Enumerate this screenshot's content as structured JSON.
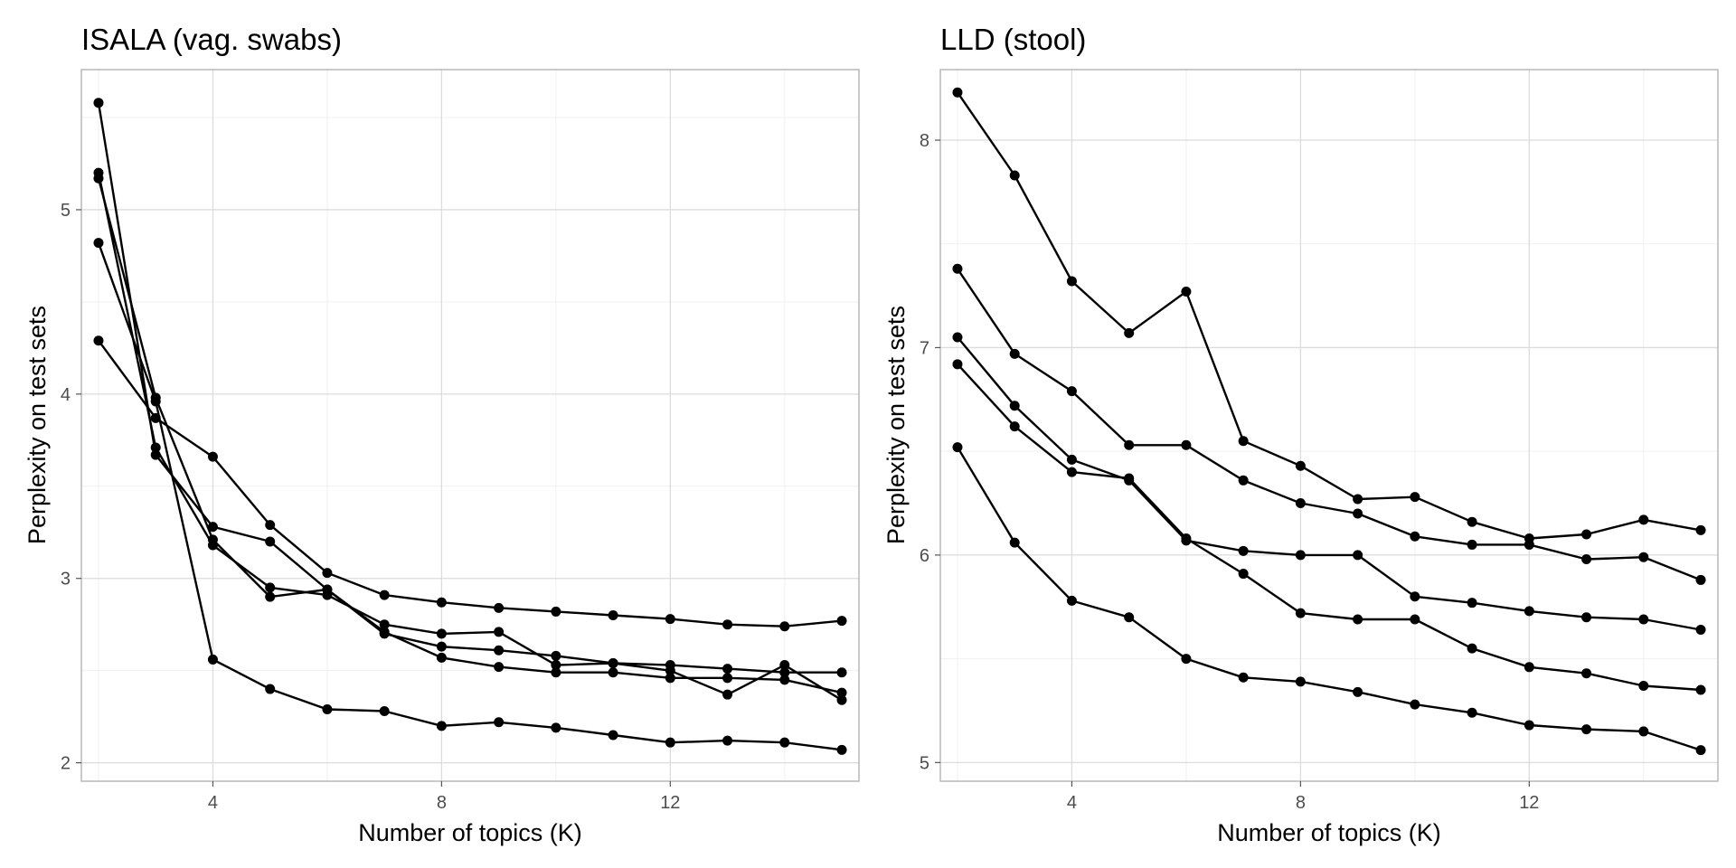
{
  "chart_data": [
    {
      "type": "line",
      "title": "ISALA (vag. swabs)",
      "xlabel": "Number of topics (K)",
      "ylabel": "Perplexity on test sets",
      "xlim": [
        1.7,
        15.3
      ],
      "ylim": [
        1.9,
        5.76
      ],
      "xticks": [
        4,
        8,
        12
      ],
      "yticks": [
        2,
        3,
        4,
        5
      ],
      "grid": true,
      "x": [
        2,
        3,
        4,
        5,
        6,
        7,
        8,
        9,
        10,
        11,
        12,
        13,
        14,
        15
      ],
      "series": [
        {
          "values": [
            4.29,
            3.87,
            3.66,
            3.29,
            3.03,
            2.91,
            2.87,
            2.84,
            2.82,
            2.8,
            2.78,
            2.75,
            2.74,
            2.77
          ]
        },
        {
          "values": [
            5.58,
            3.67,
            3.28,
            3.2,
            2.94,
            2.7,
            2.63,
            2.61,
            2.58,
            2.54,
            2.53,
            2.51,
            2.49,
            2.49
          ]
        },
        {
          "values": [
            5.2,
            3.71,
            3.18,
            2.95,
            2.91,
            2.75,
            2.7,
            2.71,
            2.53,
            2.54,
            2.5,
            2.37,
            2.53,
            2.34
          ]
        },
        {
          "values": [
            5.17,
            3.98,
            3.21,
            2.9,
            2.94,
            2.71,
            2.57,
            2.52,
            2.49,
            2.49,
            2.46,
            2.46,
            2.45,
            2.38
          ]
        },
        {
          "values": [
            4.82,
            3.96,
            2.56,
            2.4,
            2.29,
            2.28,
            2.2,
            2.22,
            2.19,
            2.15,
            2.11,
            2.12,
            2.11,
            2.07
          ]
        }
      ]
    },
    {
      "type": "line",
      "title": "LLD (stool)",
      "xlabel": "Number of topics (K)",
      "ylabel": "Perplexity on test sets",
      "xlim": [
        1.7,
        15.3
      ],
      "ylim": [
        4.91,
        8.34
      ],
      "xticks": [
        4,
        8,
        12
      ],
      "yticks": [
        5,
        6,
        7,
        8
      ],
      "grid": true,
      "x": [
        2,
        3,
        4,
        5,
        6,
        7,
        8,
        9,
        10,
        11,
        12,
        13,
        14,
        15
      ],
      "series": [
        {
          "values": [
            8.23,
            7.83,
            7.32,
            7.07,
            7.27,
            6.55,
            6.43,
            6.27,
            6.28,
            6.16,
            6.08,
            6.1,
            6.17,
            6.12
          ]
        },
        {
          "values": [
            7.38,
            6.97,
            6.79,
            6.53,
            6.53,
            6.36,
            6.25,
            6.2,
            6.09,
            6.05,
            6.05,
            5.98,
            5.99,
            5.88
          ]
        },
        {
          "values": [
            7.05,
            6.72,
            6.46,
            6.36,
            6.07,
            6.02,
            6.0,
            6.0,
            5.8,
            5.77,
            5.73,
            5.7,
            5.69,
            5.64
          ]
        },
        {
          "values": [
            6.92,
            6.62,
            6.4,
            6.37,
            6.08,
            5.91,
            5.72,
            5.69,
            5.69,
            5.55,
            5.46,
            5.43,
            5.37,
            5.35
          ]
        },
        {
          "values": [
            6.52,
            6.06,
            5.78,
            5.7,
            5.5,
            5.41,
            5.39,
            5.34,
            5.28,
            5.24,
            5.18,
            5.16,
            5.15,
            5.06
          ]
        }
      ]
    }
  ]
}
